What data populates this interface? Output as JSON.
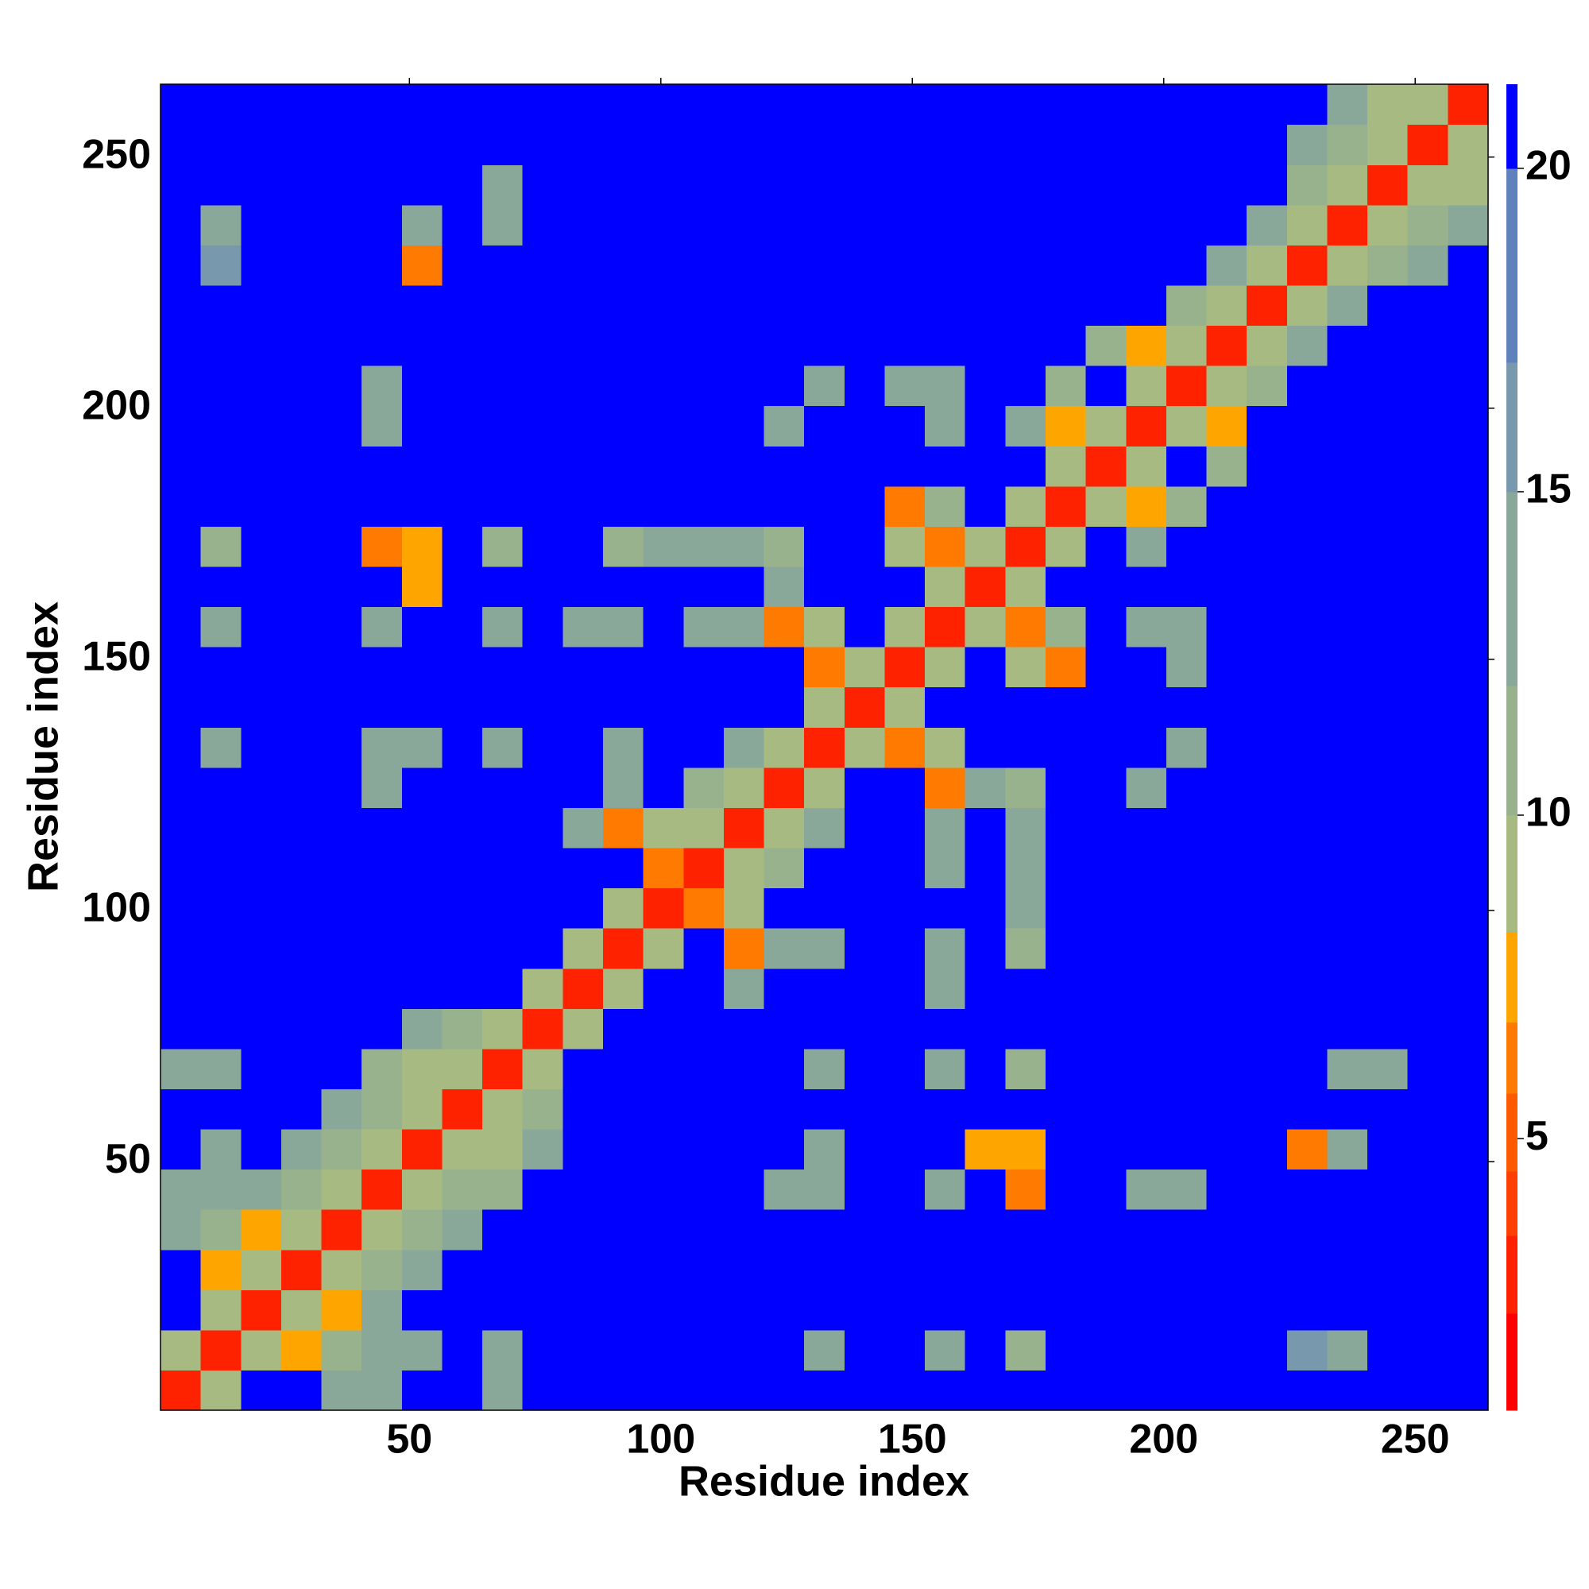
{
  "chart_data": {
    "type": "heatmap",
    "x_label": "Residue index",
    "y_label": "Residue index",
    "x": [
      4.5,
      12.5,
      20.5,
      28.5,
      36.5,
      44.5,
      52.5,
      60.5,
      68.5,
      76.5,
      84.5,
      92.5,
      100.5,
      108.5,
      116.5,
      124.5,
      132.5,
      140.5,
      148.5,
      156.5,
      164.5,
      172.5,
      180.5,
      188.5,
      196.5,
      204.5,
      212.5,
      220.5,
      228.5,
      236.5,
      244.5,
      252.5,
      260.5
    ],
    "y": [
      4.5,
      12.5,
      20.5,
      28.5,
      36.5,
      44.5,
      52.5,
      60.5,
      68.5,
      76.5,
      84.5,
      92.5,
      100.5,
      108.5,
      116.5,
      124.5,
      132.5,
      140.5,
      148.5,
      156.5,
      164.5,
      172.5,
      180.5,
      188.5,
      196.5,
      204.5,
      212.5,
      220.5,
      228.5,
      236.5,
      244.5,
      252.5,
      260.5
    ],
    "xlim": [
      0.5,
      264.5
    ],
    "ylim": [
      0.5,
      264.5
    ],
    "xticks": [
      50,
      100,
      150,
      200,
      250
    ],
    "yticks": [
      50,
      100,
      150,
      200,
      250
    ],
    "clim": [
      0.8,
      21.3
    ],
    "cticks": [
      5,
      10,
      15,
      20
    ],
    "colormap": [
      {
        "to": 2.3,
        "color": "#ff0000"
      },
      {
        "to": 3.5,
        "color": "#ff2200"
      },
      {
        "to": 4.5,
        "color": "#ff4000"
      },
      {
        "to": 5.7,
        "color": "#ff5a00"
      },
      {
        "to": 6.8,
        "color": "#ff7a00"
      },
      {
        "to": 8.2,
        "color": "#ffa500"
      },
      {
        "to": 10,
        "color": "#a6ba82"
      },
      {
        "to": 12,
        "color": "#98b28e"
      },
      {
        "to": 15,
        "color": "#8aa89a"
      },
      {
        "to": 17,
        "color": "#7898ad"
      },
      {
        "to": 20,
        "color": "#5f82bd"
      },
      {
        "to": 21.3,
        "color": "#0000ff"
      }
    ],
    "z": [
      [
        3,
        10,
        21,
        21,
        15,
        14,
        21,
        21,
        14,
        21,
        21,
        21,
        21,
        21,
        21,
        21,
        21,
        21,
        21,
        21,
        21,
        21,
        21,
        21,
        21,
        21,
        21,
        21,
        21,
        21,
        21,
        21,
        21
      ],
      [
        10,
        3,
        10,
        8,
        12,
        13,
        14,
        21,
        13,
        21,
        21,
        21,
        21,
        21,
        21,
        21,
        13,
        21,
        21,
        13,
        21,
        12,
        21,
        21,
        21,
        21,
        21,
        21,
        16,
        15,
        21,
        21,
        21
      ],
      [
        21,
        10,
        3,
        10,
        8,
        13,
        21,
        21,
        21,
        21,
        21,
        21,
        21,
        21,
        21,
        21,
        21,
        21,
        21,
        21,
        21,
        21,
        21,
        21,
        21,
        21,
        21,
        21,
        21,
        21,
        21,
        21,
        21
      ],
      [
        21,
        8,
        10,
        3,
        10,
        12,
        13,
        21,
        21,
        21,
        21,
        21,
        21,
        21,
        21,
        21,
        21,
        21,
        21,
        21,
        21,
        21,
        21,
        21,
        21,
        21,
        21,
        21,
        21,
        21,
        21,
        21,
        21
      ],
      [
        15,
        12,
        8,
        10,
        3,
        10,
        12,
        14,
        21,
        21,
        21,
        21,
        21,
        21,
        21,
        21,
        21,
        21,
        21,
        21,
        21,
        21,
        21,
        21,
        21,
        21,
        21,
        21,
        21,
        21,
        21,
        21,
        21
      ],
      [
        14,
        13,
        13,
        12,
        10,
        3,
        10,
        11,
        12,
        21,
        21,
        21,
        21,
        21,
        21,
        15,
        14,
        21,
        21,
        13,
        21,
        6,
        21,
        21,
        14,
        14,
        21,
        21,
        21,
        21,
        21,
        21,
        21
      ],
      [
        21,
        14,
        21,
        13,
        12,
        10,
        3,
        10,
        10,
        13,
        21,
        21,
        21,
        21,
        21,
        21,
        13,
        21,
        21,
        21,
        7,
        7,
        21,
        21,
        21,
        21,
        21,
        21,
        6,
        14,
        21,
        21,
        21
      ],
      [
        21,
        21,
        21,
        21,
        14,
        11,
        10,
        3,
        10,
        12,
        21,
        21,
        21,
        21,
        21,
        21,
        21,
        21,
        21,
        21,
        21,
        21,
        21,
        21,
        21,
        21,
        21,
        21,
        21,
        21,
        21,
        21,
        21
      ],
      [
        14,
        13,
        21,
        21,
        21,
        12,
        10,
        10,
        3,
        10,
        21,
        21,
        21,
        21,
        21,
        21,
        15,
        21,
        21,
        13,
        21,
        12,
        21,
        21,
        21,
        21,
        21,
        21,
        21,
        13,
        15,
        21,
        21
      ],
      [
        21,
        21,
        21,
        21,
        21,
        21,
        13,
        12,
        10,
        3,
        10,
        21,
        21,
        21,
        21,
        21,
        21,
        21,
        21,
        21,
        21,
        21,
        21,
        21,
        21,
        21,
        21,
        21,
        21,
        21,
        21,
        21,
        21
      ],
      [
        21,
        21,
        21,
        21,
        21,
        21,
        21,
        21,
        21,
        10,
        3,
        10,
        21,
        21,
        13,
        21,
        21,
        21,
        21,
        14,
        21,
        21,
        21,
        21,
        21,
        21,
        21,
        21,
        21,
        21,
        21,
        21,
        21
      ],
      [
        21,
        21,
        21,
        21,
        21,
        21,
        21,
        21,
        21,
        21,
        10,
        3,
        10,
        21,
        6,
        14,
        14,
        21,
        21,
        13,
        21,
        11,
        21,
        21,
        21,
        21,
        21,
        21,
        21,
        21,
        21,
        21,
        21
      ],
      [
        21,
        21,
        21,
        21,
        21,
        21,
        21,
        21,
        21,
        21,
        21,
        10,
        3,
        6,
        10,
        21,
        21,
        21,
        21,
        21,
        21,
        13,
        21,
        21,
        21,
        21,
        21,
        21,
        21,
        21,
        21,
        21,
        21
      ],
      [
        21,
        21,
        21,
        21,
        21,
        21,
        21,
        21,
        21,
        21,
        21,
        21,
        6,
        3,
        10,
        12,
        21,
        21,
        21,
        13,
        21,
        14,
        21,
        21,
        21,
        21,
        21,
        21,
        21,
        21,
        21,
        21,
        21
      ],
      [
        21,
        21,
        21,
        21,
        21,
        21,
        21,
        21,
        21,
        21,
        13,
        6,
        10,
        10,
        3,
        10,
        13,
        21,
        21,
        13,
        21,
        14,
        21,
        21,
        21,
        21,
        21,
        21,
        21,
        21,
        21,
        21,
        21
      ],
      [
        21,
        21,
        21,
        21,
        21,
        15,
        21,
        21,
        21,
        21,
        21,
        14,
        21,
        12,
        10,
        3,
        10,
        21,
        21,
        6,
        13,
        12,
        21,
        21,
        13,
        21,
        21,
        21,
        21,
        21,
        21,
        21,
        21
      ],
      [
        21,
        13,
        21,
        21,
        21,
        14,
        13,
        21,
        15,
        21,
        21,
        14,
        21,
        21,
        13,
        10,
        3,
        10,
        6,
        10,
        21,
        21,
        21,
        21,
        21,
        13,
        21,
        21,
        21,
        21,
        21,
        21,
        21
      ],
      [
        21,
        21,
        21,
        21,
        21,
        21,
        21,
        21,
        21,
        21,
        21,
        21,
        21,
        21,
        21,
        21,
        10,
        3,
        10,
        21,
        21,
        21,
        21,
        21,
        21,
        21,
        21,
        21,
        21,
        21,
        21,
        21,
        21
      ],
      [
        21,
        21,
        21,
        21,
        21,
        21,
        21,
        21,
        21,
        21,
        21,
        21,
        21,
        21,
        21,
        21,
        6,
        10,
        3,
        10,
        21,
        10,
        6,
        21,
        21,
        14,
        21,
        21,
        21,
        21,
        21,
        21,
        21
      ],
      [
        21,
        13,
        21,
        21,
        21,
        13,
        21,
        21,
        13,
        21,
        14,
        13,
        21,
        13,
        13,
        6,
        10,
        21,
        10,
        3,
        10,
        6,
        12,
        21,
        14,
        13,
        21,
        21,
        21,
        21,
        21,
        21,
        21
      ],
      [
        21,
        21,
        21,
        21,
        21,
        21,
        7,
        21,
        21,
        21,
        21,
        21,
        21,
        21,
        21,
        13,
        21,
        21,
        21,
        10,
        3,
        10,
        21,
        21,
        21,
        21,
        21,
        21,
        21,
        21,
        21,
        21,
        21
      ],
      [
        21,
        12,
        21,
        21,
        21,
        6,
        7,
        21,
        12,
        21,
        21,
        11,
        13,
        14,
        14,
        12,
        21,
        21,
        10,
        6,
        10,
        3,
        10,
        21,
        13,
        21,
        21,
        21,
        21,
        21,
        21,
        21,
        21
      ],
      [
        21,
        21,
        21,
        21,
        21,
        21,
        21,
        21,
        21,
        21,
        21,
        21,
        21,
        21,
        21,
        21,
        21,
        21,
        6,
        12,
        21,
        10,
        3,
        10,
        7,
        12,
        21,
        21,
        21,
        21,
        21,
        21,
        21
      ],
      [
        21,
        21,
        21,
        21,
        21,
        21,
        21,
        21,
        21,
        21,
        21,
        21,
        21,
        21,
        21,
        21,
        21,
        21,
        21,
        21,
        21,
        21,
        10,
        3,
        10,
        21,
        11,
        21,
        21,
        21,
        21,
        21,
        21
      ],
      [
        21,
        21,
        21,
        21,
        21,
        14,
        21,
        21,
        21,
        21,
        21,
        21,
        21,
        21,
        21,
        13,
        21,
        21,
        21,
        14,
        21,
        13,
        7,
        10,
        3,
        10,
        8,
        21,
        21,
        21,
        21,
        21,
        21
      ],
      [
        21,
        21,
        21,
        21,
        21,
        14,
        21,
        21,
        21,
        21,
        21,
        21,
        21,
        21,
        21,
        21,
        13,
        21,
        14,
        13,
        21,
        21,
        12,
        21,
        10,
        3,
        10,
        12,
        21,
        21,
        21,
        21,
        21
      ],
      [
        21,
        21,
        21,
        21,
        21,
        21,
        21,
        21,
        21,
        21,
        21,
        21,
        21,
        21,
        21,
        21,
        21,
        21,
        21,
        21,
        21,
        21,
        21,
        11,
        8,
        10,
        3,
        10,
        13,
        21,
        21,
        21,
        21
      ],
      [
        21,
        21,
        21,
        21,
        21,
        21,
        21,
        21,
        21,
        21,
        21,
        21,
        21,
        21,
        21,
        21,
        21,
        21,
        21,
        21,
        21,
        21,
        21,
        21,
        21,
        12,
        10,
        3,
        10,
        13,
        21,
        21,
        21
      ],
      [
        21,
        16,
        21,
        21,
        21,
        21,
        6,
        21,
        21,
        21,
        21,
        21,
        21,
        21,
        21,
        21,
        21,
        21,
        21,
        21,
        21,
        21,
        21,
        21,
        21,
        21,
        13,
        10,
        3,
        10,
        12,
        14,
        21
      ],
      [
        21,
        15,
        21,
        21,
        21,
        21,
        14,
        21,
        13,
        21,
        21,
        21,
        21,
        21,
        21,
        21,
        21,
        21,
        21,
        21,
        21,
        21,
        21,
        21,
        21,
        21,
        21,
        13,
        10,
        3,
        10,
        11,
        13
      ],
      [
        21,
        21,
        21,
        21,
        21,
        21,
        21,
        21,
        15,
        21,
        21,
        21,
        21,
        21,
        21,
        21,
        21,
        21,
        21,
        21,
        21,
        21,
        21,
        21,
        21,
        21,
        21,
        21,
        12,
        10,
        3,
        10,
        10
      ],
      [
        21,
        21,
        21,
        21,
        21,
        21,
        21,
        21,
        21,
        21,
        21,
        21,
        21,
        21,
        21,
        21,
        21,
        21,
        21,
        21,
        21,
        21,
        21,
        21,
        21,
        21,
        21,
        21,
        14,
        11,
        10,
        3,
        10
      ],
      [
        21,
        21,
        21,
        21,
        21,
        21,
        21,
        21,
        21,
        21,
        21,
        21,
        21,
        21,
        21,
        21,
        21,
        21,
        21,
        21,
        21,
        21,
        21,
        21,
        21,
        21,
        21,
        21,
        21,
        13,
        10,
        10,
        3
      ]
    ]
  }
}
